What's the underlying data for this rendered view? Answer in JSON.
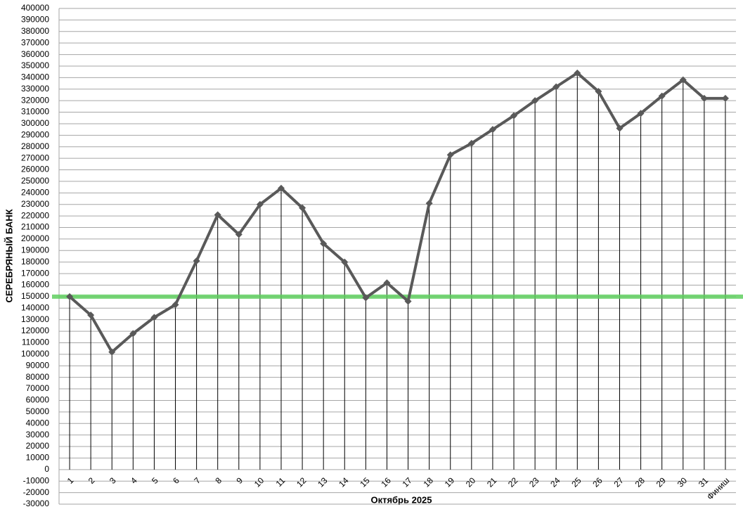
{
  "chart_data": {
    "type": "line",
    "x_label": "Октябрь 2025",
    "y_label": "СЕРЕБРЯНЫЙ БАНК",
    "categories": [
      "1",
      "2",
      "3",
      "4",
      "5",
      "6",
      "7",
      "8",
      "9",
      "10",
      "11",
      "12",
      "13",
      "14",
      "15",
      "16",
      "17",
      "18",
      "19",
      "20",
      "21",
      "22",
      "23",
      "24",
      "25",
      "26",
      "27",
      "28",
      "29",
      "30",
      "31",
      "Финиш"
    ],
    "series": [
      {
        "color": "#595959",
        "values": [
          150000,
          134000,
          102000,
          118000,
          132000,
          143000,
          181000,
          221000,
          204000,
          230000,
          244000,
          227000,
          196000,
          180000,
          149000,
          162000,
          146000,
          231000,
          273000,
          283000,
          295000,
          307000,
          320000,
          332000,
          344000,
          328000,
          296000,
          309000,
          324000,
          338000,
          322000,
          322000
        ]
      }
    ],
    "reference_line": {
      "value": 150000,
      "color": "#5fcf5f"
    },
    "ylim": [
      -30000,
      400000
    ],
    "yticks": [
      -30000,
      -20000,
      -10000,
      0,
      10000,
      20000,
      30000,
      40000,
      50000,
      60000,
      70000,
      80000,
      90000,
      100000,
      110000,
      120000,
      130000,
      140000,
      150000,
      160000,
      170000,
      180000,
      190000,
      200000,
      210000,
      220000,
      230000,
      240000,
      250000,
      260000,
      270000,
      280000,
      290000,
      300000,
      310000,
      320000,
      330000,
      340000,
      350000,
      360000,
      370000,
      380000,
      390000,
      400000
    ],
    "grid": true
  }
}
